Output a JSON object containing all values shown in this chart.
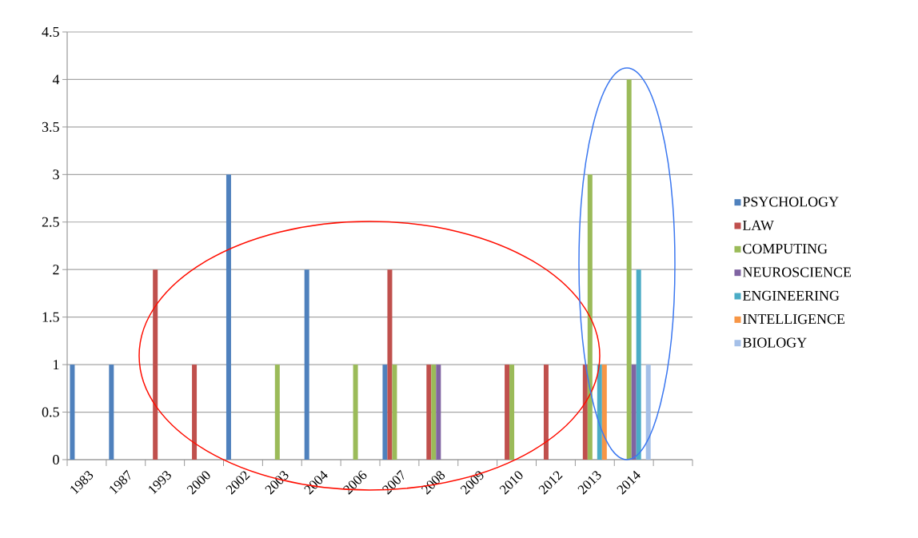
{
  "chart_data": {
    "type": "bar",
    "categories": [
      "1983",
      "1987",
      "1993",
      "2000",
      "2002",
      "2003",
      "2004",
      "2006",
      "2007",
      "2008",
      "2009",
      "2010",
      "2012",
      "2013",
      "2014",
      null
    ],
    "series": [
      {
        "name": "PSYCHOLOGY",
        "color": "#4f81bd",
        "values": [
          1,
          1,
          null,
          null,
          3,
          null,
          2,
          null,
          1,
          null,
          null,
          null,
          null,
          null,
          null,
          null
        ]
      },
      {
        "name": "LAW",
        "color": "#c0504d",
        "values": [
          null,
          null,
          2,
          1,
          null,
          null,
          null,
          null,
          2,
          1,
          null,
          1,
          1,
          1,
          null,
          null
        ]
      },
      {
        "name": "COMPUTING",
        "color": "#9bbb59",
        "values": [
          null,
          null,
          null,
          null,
          null,
          1,
          null,
          1,
          1,
          1,
          null,
          1,
          null,
          3,
          4,
          null
        ]
      },
      {
        "name": "NEUROSCIENCE",
        "color": "#8064a2",
        "values": [
          null,
          null,
          null,
          null,
          null,
          null,
          null,
          null,
          null,
          1,
          null,
          null,
          null,
          null,
          1,
          null
        ]
      },
      {
        "name": "ENGINEERING",
        "color": "#4bacc6",
        "values": [
          null,
          null,
          null,
          null,
          null,
          null,
          null,
          null,
          null,
          null,
          null,
          null,
          null,
          1,
          2,
          null
        ]
      },
      {
        "name": "INTELLIGENCE",
        "color": "#f79646",
        "values": [
          null,
          null,
          null,
          null,
          null,
          null,
          null,
          null,
          null,
          null,
          null,
          null,
          null,
          1,
          null,
          null
        ]
      },
      {
        "name": "BIOLOGY",
        "color": "#a5c0e8",
        "values": [
          null,
          null,
          null,
          null,
          null,
          null,
          null,
          null,
          null,
          null,
          null,
          null,
          null,
          null,
          1,
          null
        ]
      }
    ],
    "ylim": [
      0,
      4.5
    ],
    "yticks": [
      0,
      0.5,
      1,
      1.5,
      2,
      2.5,
      3,
      3.5,
      4,
      4.5
    ],
    "grid": "y",
    "legend": "right"
  }
}
